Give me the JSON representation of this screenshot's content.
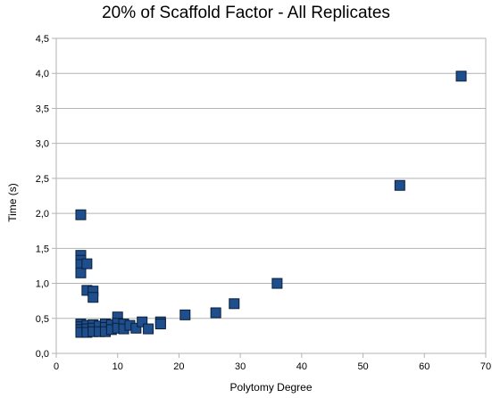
{
  "chart_data": {
    "type": "scatter",
    "title": "20% of Scaffold Factor - All Replicates",
    "xlabel": "Polytomy Degree",
    "ylabel": "Time (s)",
    "xlim": [
      0,
      70
    ],
    "ylim": [
      0,
      4.5
    ],
    "x_ticks": [
      "0",
      "10",
      "20",
      "30",
      "40",
      "50",
      "60",
      "70"
    ],
    "y_ticks": [
      "0,0",
      "0,5",
      "1,0",
      "1,5",
      "2,0",
      "2,5",
      "3,0",
      "3,5",
      "4,0",
      "4,5"
    ],
    "grid": "horizontal",
    "legend": "none",
    "marker": "square",
    "marker_color": "#1f4e8c",
    "marker_edge": "#0a1f3a",
    "points": [
      {
        "x": 4,
        "y": 1.98
      },
      {
        "x": 4,
        "y": 1.4
      },
      {
        "x": 4,
        "y": 1.33
      },
      {
        "x": 4,
        "y": 1.27
      },
      {
        "x": 4,
        "y": 1.15
      },
      {
        "x": 5,
        "y": 1.28
      },
      {
        "x": 5,
        "y": 0.9
      },
      {
        "x": 6,
        "y": 0.89
      },
      {
        "x": 6,
        "y": 0.8
      },
      {
        "x": 4,
        "y": 0.42
      },
      {
        "x": 4,
        "y": 0.38
      },
      {
        "x": 4,
        "y": 0.34
      },
      {
        "x": 4,
        "y": 0.3
      },
      {
        "x": 5,
        "y": 0.4
      },
      {
        "x": 5,
        "y": 0.35
      },
      {
        "x": 5,
        "y": 0.3
      },
      {
        "x": 6,
        "y": 0.41
      },
      {
        "x": 6,
        "y": 0.36
      },
      {
        "x": 6,
        "y": 0.31
      },
      {
        "x": 7,
        "y": 0.39
      },
      {
        "x": 7,
        "y": 0.31
      },
      {
        "x": 8,
        "y": 0.42
      },
      {
        "x": 8,
        "y": 0.37
      },
      {
        "x": 8,
        "y": 0.31
      },
      {
        "x": 9,
        "y": 0.41
      },
      {
        "x": 9,
        "y": 0.34
      },
      {
        "x": 10,
        "y": 0.52
      },
      {
        "x": 10,
        "y": 0.43
      },
      {
        "x": 10,
        "y": 0.36
      },
      {
        "x": 11,
        "y": 0.42
      },
      {
        "x": 11,
        "y": 0.35
      },
      {
        "x": 12,
        "y": 0.4
      },
      {
        "x": 13,
        "y": 0.36
      },
      {
        "x": 14,
        "y": 0.45
      },
      {
        "x": 15,
        "y": 0.35
      },
      {
        "x": 17,
        "y": 0.45
      },
      {
        "x": 17,
        "y": 0.42
      },
      {
        "x": 21,
        "y": 0.55
      },
      {
        "x": 26,
        "y": 0.58
      },
      {
        "x": 29,
        "y": 0.71
      },
      {
        "x": 36,
        "y": 1.0
      },
      {
        "x": 56,
        "y": 2.4
      },
      {
        "x": 66,
        "y": 3.96
      }
    ]
  }
}
